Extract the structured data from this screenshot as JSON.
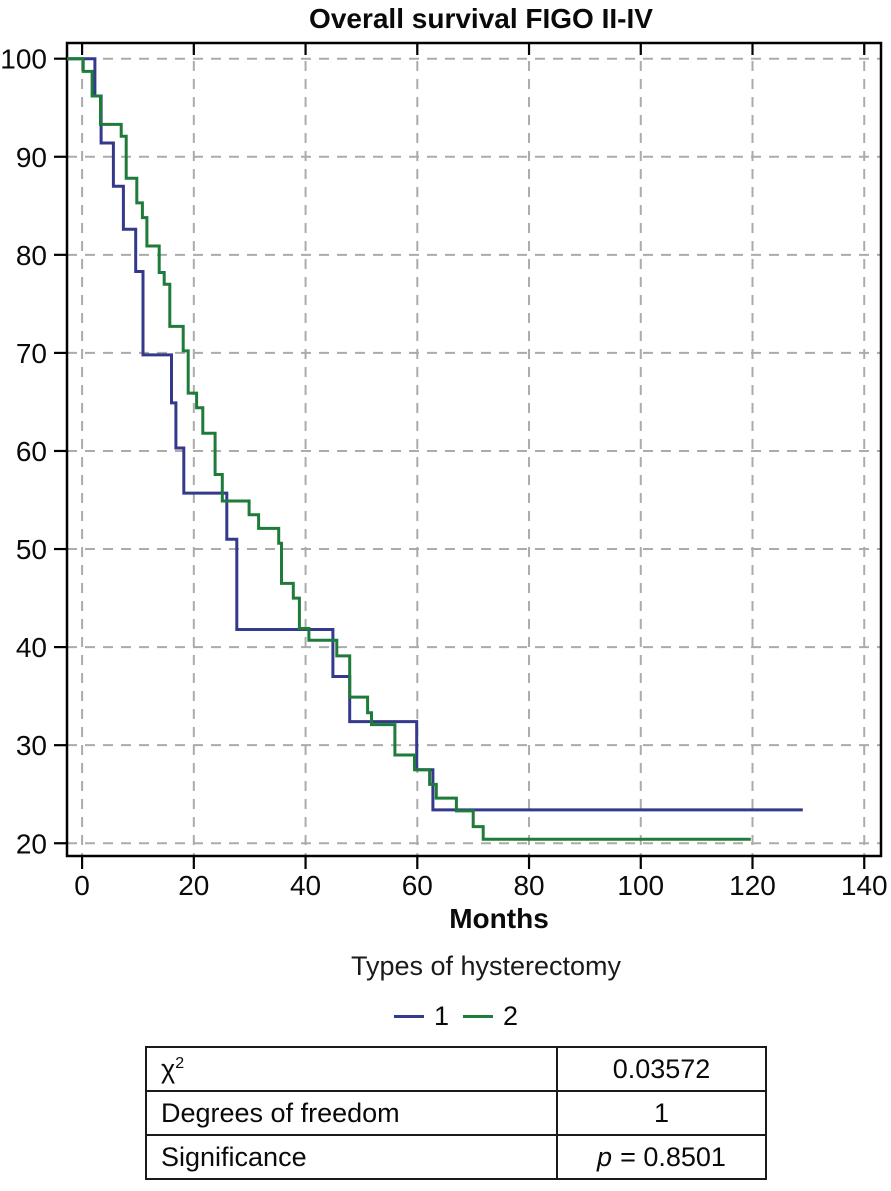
{
  "title": "Overall survival FIGO II-IV",
  "chart_data": {
    "type": "line",
    "subtype": "kaplan-meier-step",
    "title": "Overall survival FIGO II-IV",
    "xlabel": "Months",
    "ylabel": "",
    "legend_title": "Types of hysterectomy",
    "legend_position": "bottom",
    "grid": {
      "on": true,
      "style": "dashed",
      "color": "#ababab"
    },
    "axis_color": "#000000",
    "x_ticks": [
      0,
      20,
      40,
      60,
      80,
      100,
      120,
      140
    ],
    "y_ticks": [
      20,
      30,
      40,
      50,
      60,
      70,
      80,
      90,
      100
    ],
    "xlim": [
      -2.7,
      143.0
    ],
    "ylim": [
      18.7,
      101.6
    ],
    "series": [
      {
        "name": "1",
        "color": "#34398C",
        "steps": [
          [
            0,
            100
          ],
          [
            2.3,
            96.2
          ],
          [
            3.4,
            91.4
          ],
          [
            5.6,
            87.0
          ],
          [
            7.4,
            82.6
          ],
          [
            9.6,
            78.3
          ],
          [
            10.9,
            69.8
          ],
          [
            16.0,
            64.9
          ],
          [
            16.8,
            60.3
          ],
          [
            18.2,
            55.7
          ],
          [
            25.9,
            51.0
          ],
          [
            27.7,
            41.8
          ],
          [
            44.9,
            37.0
          ],
          [
            47.9,
            32.4
          ],
          [
            59.9,
            27.5
          ],
          [
            62.8,
            23.4
          ]
        ],
        "end_time": 129
      },
      {
        "name": "2",
        "color": "#1E7B3A",
        "steps": [
          [
            0,
            100
          ],
          [
            0.2,
            98.7
          ],
          [
            1.8,
            96.2
          ],
          [
            3.3,
            93.3
          ],
          [
            7.0,
            92.1
          ],
          [
            7.9,
            87.8
          ],
          [
            9.8,
            85.3
          ],
          [
            10.8,
            83.8
          ],
          [
            11.6,
            80.9
          ],
          [
            13.8,
            78.2
          ],
          [
            14.7,
            77.0
          ],
          [
            15.7,
            72.7
          ],
          [
            18.1,
            70.2
          ],
          [
            19.0,
            65.9
          ],
          [
            20.5,
            64.4
          ],
          [
            21.6,
            61.8
          ],
          [
            23.8,
            57.6
          ],
          [
            25.1,
            54.9
          ],
          [
            29.9,
            53.5
          ],
          [
            31.6,
            52.1
          ],
          [
            35.2,
            50.6
          ],
          [
            35.7,
            46.5
          ],
          [
            37.8,
            45.0
          ],
          [
            38.9,
            41.9
          ],
          [
            40.6,
            40.7
          ],
          [
            45.6,
            39.1
          ],
          [
            47.9,
            34.9
          ],
          [
            51.1,
            33.3
          ],
          [
            51.8,
            32.1
          ],
          [
            56.0,
            29.0
          ],
          [
            59.5,
            27.5
          ],
          [
            62.2,
            26.0
          ],
          [
            63.4,
            24.6
          ],
          [
            67.0,
            23.3
          ],
          [
            70.0,
            21.7
          ],
          [
            71.8,
            20.4
          ]
        ],
        "end_time": 119.7
      }
    ]
  },
  "stats": {
    "chi_label": "χ",
    "chi_sup": "2",
    "chi_value": "0.03572",
    "df_label": "Degrees of freedom",
    "df_value": "1",
    "sig_label": "Significance",
    "sig_p": "p",
    "sig_value": "= 0.8501"
  }
}
